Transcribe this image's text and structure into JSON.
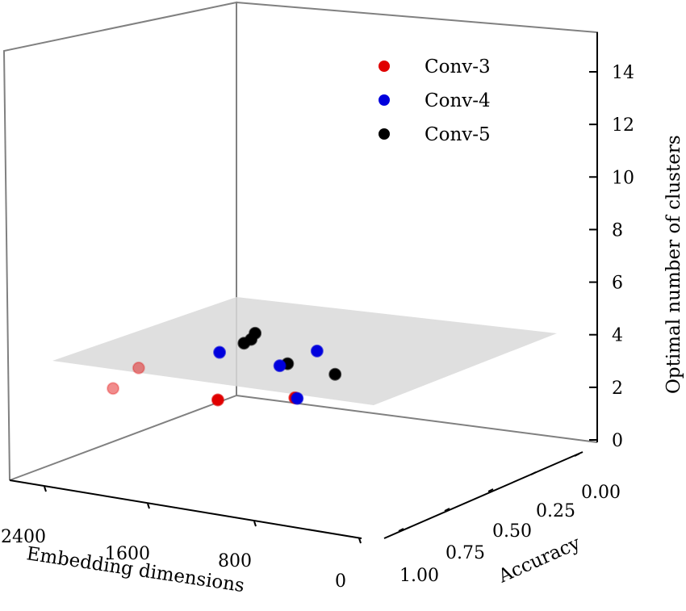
{
  "chart_data": {
    "type": "scatter",
    "projection": "3d",
    "title": "",
    "xlabel": "Embedding dimensions",
    "ylabel": "Accuracy",
    "zlabel": "Optimal number of clusters",
    "x_ticks": [
      "2400",
      "1600",
      "800",
      "0"
    ],
    "y_ticks": [
      "0.00",
      "0.25",
      "0.50",
      "0.75",
      "1.00"
    ],
    "z_ticks": [
      "0",
      "2",
      "4",
      "6",
      "8",
      "10",
      "12",
      "14"
    ],
    "zlim": [
      0,
      15
    ],
    "grid": false,
    "legend_position": "top-right",
    "plane": {
      "z": 3,
      "color": "#d9d9d9"
    },
    "series": [
      {
        "name": "Conv-3",
        "color": "#e00000",
        "points": [
          {
            "x": 2700,
            "y": 0.56,
            "z": 3
          },
          {
            "x": 2050,
            "y": 0.38,
            "z": 3
          },
          {
            "x": 1600,
            "y": 0.85,
            "z": 3
          },
          {
            "x": 620,
            "y": 0.95,
            "z": 3
          }
        ]
      },
      {
        "name": "Conv-4",
        "color": "#0000dd",
        "points": [
          {
            "x": 800,
            "y": 0.34,
            "z": 3
          },
          {
            "x": 600,
            "y": 0.96,
            "z": 3
          },
          {
            "x": 280,
            "y": 0.58,
            "z": 3
          },
          {
            "x": -420,
            "y": 0.48,
            "z": 3
          }
        ]
      },
      {
        "name": "Conv-5",
        "color": "#000000",
        "points": [
          {
            "x": 350,
            "y": 0.28,
            "z": 3
          },
          {
            "x": 200,
            "y": 0.25,
            "z": 3
          },
          {
            "x": 50,
            "y": 0.19,
            "z": 3
          },
          {
            "x": 150,
            "y": 0.57,
            "z": 3
          },
          {
            "x": -260,
            "y": 0.76,
            "z": 3
          }
        ]
      }
    ]
  }
}
